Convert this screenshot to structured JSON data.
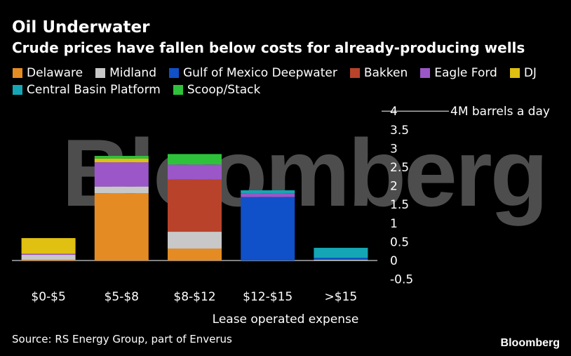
{
  "title": "Oil Underwater",
  "subtitle": "Crude prices have fallen below costs for already-producing wells",
  "source": "Source: RS Energy Group, part of Enverus",
  "brand": "Bloomberg",
  "watermark": "Bloomberg",
  "legend": [
    {
      "name": "Delaware",
      "color": "#e48c23"
    },
    {
      "name": "Midland",
      "color": "#c8c8c8"
    },
    {
      "name": "Gulf of Mexico Deepwater",
      "color": "#1050c8"
    },
    {
      "name": "Bakken",
      "color": "#b8432a"
    },
    {
      "name": "Eagle Ford",
      "color": "#9b57c8"
    },
    {
      "name": "DJ",
      "color": "#e0c010"
    },
    {
      "name": "Central Basin Platform",
      "color": "#14a6b4"
    },
    {
      "name": "Scoop/Stack",
      "color": "#2ec23a"
    }
  ],
  "chart_data": {
    "type": "bar",
    "stacked": true,
    "categories": [
      "$0-$5",
      "$5-$8",
      "$8-$12",
      "$12-$15",
      ">$15"
    ],
    "xlabel": "Lease operated expense",
    "ylabel": "",
    "ylim": [
      -0.5,
      4
    ],
    "yticks": [
      "-0.5",
      "0",
      "0.5",
      "1",
      "1.5",
      "2",
      "2.5",
      "3",
      "3.5",
      "4"
    ],
    "ytick_values": [
      -0.5,
      0,
      0.5,
      1,
      1.5,
      2,
      2.5,
      3,
      3.5,
      4
    ],
    "annotation": {
      "y": 4,
      "text": "4M barrels a day"
    },
    "grid": false,
    "legend_position": "top",
    "series": [
      {
        "name": "Delaware",
        "color": "#e48c23",
        "values": [
          0.02,
          1.8,
          0.32,
          0,
          0
        ]
      },
      {
        "name": "Midland",
        "color": "#c8c8c8",
        "values": [
          0.13,
          0.18,
          0.45,
          0,
          0.02
        ]
      },
      {
        "name": "Gulf of Mexico Deepwater",
        "color": "#1050c8",
        "values": [
          0,
          0,
          0,
          1.7,
          0.05
        ]
      },
      {
        "name": "Bakken",
        "color": "#b8432a",
        "values": [
          0,
          0,
          1.4,
          0,
          0
        ]
      },
      {
        "name": "Eagle Ford",
        "color": "#9b57c8",
        "values": [
          0.03,
          0.65,
          0.4,
          0.1,
          0
        ]
      },
      {
        "name": "DJ",
        "color": "#e0c010",
        "values": [
          0.42,
          0.1,
          0,
          0,
          0
        ]
      },
      {
        "name": "Central Basin Platform",
        "color": "#14a6b4",
        "values": [
          0,
          0,
          0,
          0.08,
          0.27
        ]
      },
      {
        "name": "Scoop/Stack",
        "color": "#2ec23a",
        "values": [
          0,
          0.07,
          0.28,
          0,
          0
        ]
      }
    ]
  }
}
